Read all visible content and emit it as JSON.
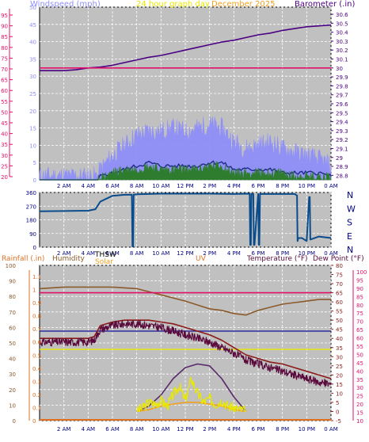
{
  "chart_data": [
    {
      "type": "line",
      "panel": "wind and barometer",
      "header": {
        "left": "Windspeed (mph)",
        "center": "24 hour graph day",
        "date": "December 2025",
        "right": "Barometer (.in)"
      },
      "x_tick_labels": [
        "2 AM",
        "4 AM",
        "6 AM",
        "8 AM",
        "10 AM",
        "12 PM",
        "2 PM",
        "4 PM",
        "6 PM",
        "8 PM",
        "10 PM",
        "0 AM"
      ],
      "left_axis": {
        "ticks": [
          0,
          5,
          10,
          15,
          20,
          25,
          30,
          35,
          40,
          45,
          50
        ],
        "ylim": [
          0,
          50
        ]
      },
      "pink_axis": {
        "ticks": [
          20,
          25,
          30,
          35,
          40,
          45,
          50,
          55,
          60,
          65,
          70,
          75,
          80,
          85,
          90,
          95
        ]
      },
      "right_axis": {
        "ticks": [
          "28.8",
          "28.9",
          "29",
          "29.1",
          "29.2",
          "29.3",
          "29.4",
          "29.5",
          "29.6",
          "29.7",
          "29.8",
          "29.9",
          "30",
          "30.1",
          "30.2",
          "30.3",
          "30.4",
          "30.5",
          "30.6"
        ],
        "ylim": [
          28.75,
          30.68
        ]
      },
      "series": [
        {
          "key": "barometer",
          "color": "#4b0082",
          "x": [
            0,
            1,
            2,
            3,
            4,
            5,
            6,
            7,
            8,
            9,
            10,
            11,
            12,
            13,
            14,
            15,
            16,
            17,
            18,
            19,
            20,
            21,
            22,
            23,
            24
          ],
          "y": [
            29.97,
            29.97,
            29.97,
            29.98,
            30.0,
            30.01,
            30.03,
            30.06,
            30.09,
            30.12,
            30.14,
            30.17,
            30.2,
            30.23,
            30.26,
            30.29,
            30.31,
            30.34,
            30.37,
            30.39,
            30.42,
            30.44,
            30.46,
            30.47,
            30.48
          ]
        },
        {
          "key": "pink_reference",
          "color": "#e0106a",
          "x": [
            0,
            24
          ],
          "y": [
            30.0,
            30.0
          ]
        },
        {
          "key": "wind_gust",
          "color": "#8f8ff8",
          "x": [
            0,
            2,
            4,
            4.8,
            5,
            6,
            7,
            8,
            9,
            10,
            11,
            12,
            13,
            14,
            15,
            16,
            17,
            18,
            19,
            20,
            21,
            22,
            23,
            24
          ],
          "y": [
            1,
            1,
            1,
            1,
            3,
            7,
            10,
            13,
            14,
            14,
            15,
            14,
            15,
            16,
            15,
            11,
            9,
            10,
            11,
            9,
            8,
            7,
            6,
            4
          ]
        },
        {
          "key": "wind_average",
          "color": "#1f2a8c",
          "x": [
            0,
            2,
            4,
            4.8,
            5,
            6,
            7,
            8,
            9,
            10,
            11,
            12,
            13,
            14,
            15,
            16,
            17,
            18,
            19,
            20,
            21,
            22,
            23,
            24
          ],
          "y": [
            0,
            0,
            0,
            0,
            1,
            2,
            3,
            4,
            5,
            4,
            4,
            4,
            4,
            5,
            5,
            3,
            3,
            3,
            3,
            2,
            2,
            2,
            2,
            1
          ]
        },
        {
          "key": "wind_speed",
          "color": "#2e7d2e",
          "x": [
            0,
            2,
            4,
            4.8,
            5,
            6,
            7,
            8,
            9,
            10,
            11,
            12,
            13,
            14,
            15,
            16,
            17,
            18,
            19,
            20,
            21,
            22,
            23,
            24
          ],
          "y": [
            0,
            0,
            0,
            0,
            0.5,
            2,
            3,
            3,
            4,
            3,
            3,
            3,
            3,
            4,
            4,
            2,
            2,
            2,
            2,
            2,
            1,
            1,
            1,
            1
          ]
        }
      ]
    },
    {
      "type": "line",
      "panel": "wind direction",
      "x_tick_labels": [
        "2 AM",
        "4 AM",
        "6 AM",
        "8 AM",
        "10 AM",
        "12 PM",
        "2 PM",
        "4 PM",
        "6 PM",
        "8 PM",
        "10 PM",
        "0 AM"
      ],
      "left_axis": {
        "ticks": [
          0,
          90,
          180,
          270,
          360
        ],
        "ylim": [
          0,
          360
        ]
      },
      "compass_labels": [
        "N",
        "W",
        "S",
        "E",
        "N"
      ],
      "series": [
        {
          "key": "wind_direction",
          "color": "#0a4c8c",
          "x": [
            0,
            4,
            4.6,
            5,
            6,
            7,
            7.6,
            7.65,
            7.7,
            7.75,
            8,
            10,
            12,
            14,
            16,
            17.3,
            17.35,
            17.4,
            17.45,
            17.6,
            17.65,
            17.7,
            18,
            18.05,
            18.1,
            18.15,
            19,
            20,
            21,
            21.2,
            21.25,
            21.3,
            21.6,
            22,
            22.2,
            22.25,
            22.3,
            23,
            24
          ],
          "y": [
            236,
            240,
            250,
            300,
            338,
            345,
            345,
            5,
            5,
            345,
            348,
            352,
            352,
            352,
            350,
            352,
            15,
            15,
            350,
            350,
            15,
            15,
            350,
            15,
            15,
            350,
            350,
            350,
            350,
            340,
            40,
            60,
            60,
            40,
            330,
            330,
            50,
            70,
            60
          ]
        }
      ]
    },
    {
      "type": "line",
      "panel": "temperature, humidity, rainfall, uv, solar",
      "header": {
        "rainfall": "Rainfall (.in)",
        "humidity": "Humidity",
        "thsw": "THSW",
        "solar": "Solar",
        "uv": "UV",
        "temperature": "Temperature (°F)",
        "dew_point": "Dew Point (°F)"
      },
      "x_tick_labels": [
        "2 AM",
        "4 AM",
        "6 AM",
        "8 AM",
        "10 AM",
        "12 PM",
        "2 PM",
        "4 PM",
        "6 PM",
        "8 PM",
        "10 PM",
        "0 AM"
      ],
      "humidity_axis": {
        "ticks": [
          0,
          10,
          20,
          30,
          40,
          50,
          60,
          70,
          80,
          90,
          100
        ],
        "ylim": [
          0,
          100
        ]
      },
      "rainfall_axis": {
        "ticks": [
          "0",
          "0.1",
          "0.2",
          "0.3",
          "0.4",
          "0.5",
          "0.6",
          "0.7",
          "0.8",
          "0.9",
          "1",
          "1.1"
        ]
      },
      "temperature_axis": {
        "ticks": [
          -5,
          0,
          5,
          10,
          15,
          20,
          25,
          30,
          35,
          40,
          45,
          50,
          55,
          60,
          65,
          70,
          75,
          80
        ],
        "ylim": [
          -5,
          80
        ]
      },
      "pink_axis": {
        "ticks": [
          10,
          15,
          20,
          25,
          30,
          35,
          40,
          45,
          50,
          55,
          60,
          65,
          70,
          75,
          80,
          85,
          90,
          95,
          100
        ]
      },
      "series": [
        {
          "key": "humidity",
          "color": "#8b5a2b",
          "x": [
            0,
            2,
            4,
            6,
            8,
            10,
            12,
            14,
            15,
            16,
            17,
            18,
            19,
            20,
            21,
            22,
            23,
            24
          ],
          "y": [
            85,
            86,
            86,
            86,
            85,
            81,
            77,
            72,
            71,
            69,
            68,
            71,
            73,
            75,
            76,
            77,
            78,
            78
          ]
        },
        {
          "key": "pink_reference",
          "color": "#e0106a",
          "x": [
            0,
            24
          ],
          "y": [
            65,
            65
          ]
        },
        {
          "key": "dew_point",
          "color": "#2c2ca0",
          "x": [
            0,
            24
          ],
          "y": [
            44,
            44
          ]
        },
        {
          "key": "yellow_reference",
          "color": "#e8e800",
          "x": [
            0,
            24
          ],
          "y": [
            34,
            34
          ]
        },
        {
          "key": "thsw",
          "color": "#8b1a1a",
          "x": [
            0,
            4,
            4.5,
            5,
            6,
            7,
            8,
            9,
            10,
            11,
            12,
            13,
            14,
            15,
            16,
            17,
            18,
            19,
            20,
            21,
            22,
            23,
            24
          ],
          "y": [
            40,
            40,
            41,
            47,
            49,
            50,
            50,
            50,
            49,
            48,
            46,
            44,
            42,
            39,
            35,
            31,
            29,
            27,
            26,
            24,
            22,
            20,
            18
          ]
        },
        {
          "key": "temperature",
          "color": "#5a0a3c",
          "x": [
            0,
            4,
            4.5,
            5,
            6,
            7,
            8,
            9,
            10,
            11,
            12,
            13,
            14,
            15,
            16,
            17,
            18,
            19,
            20,
            21,
            22,
            23,
            24
          ],
          "y": [
            38,
            38,
            39,
            45,
            47,
            48,
            48,
            47,
            46,
            44,
            42,
            40,
            38,
            35,
            32,
            28,
            26,
            24,
            22,
            20,
            18,
            16,
            15
          ]
        },
        {
          "key": "solar",
          "color": "#5a2a6a",
          "x": [
            8,
            9,
            10,
            11,
            12,
            13,
            14,
            15,
            16,
            17
          ],
          "y": [
            0,
            3,
            9,
            18,
            24,
            26,
            25,
            18,
            8,
            0
          ]
        },
        {
          "key": "uv",
          "color": "#f0a020",
          "x": [
            8,
            9,
            10,
            11,
            12,
            13,
            14,
            15,
            16,
            17
          ],
          "y": [
            0,
            1,
            3,
            4,
            5,
            5,
            4,
            3,
            1,
            0
          ]
        },
        {
          "key": "solar_bright",
          "color": "#e8e800",
          "x": [
            8,
            8.5,
            9,
            9.5,
            10,
            10.5,
            11,
            11.5,
            12,
            12.5,
            13,
            13.5,
            14,
            14.5,
            15,
            15.5,
            16,
            16.5,
            17
          ],
          "y": [
            0,
            2,
            5,
            4,
            6,
            3,
            9,
            14,
            6,
            18,
            10,
            5,
            7,
            4,
            6,
            3,
            2,
            1,
            0
          ]
        },
        {
          "key": "rainfall",
          "color": "#e07020",
          "x": [
            0,
            24
          ],
          "y": [
            0,
            0
          ]
        }
      ]
    }
  ]
}
